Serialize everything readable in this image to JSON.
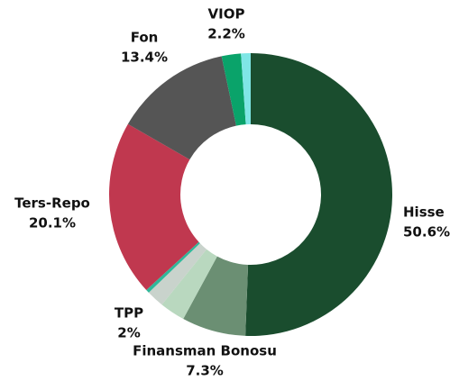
{
  "chart_data": {
    "type": "donut",
    "categories": [
      "Hisse",
      "Finansman Bonosu",
      null,
      "TPP",
      null,
      "Ters-Repo",
      "Fon",
      "VIOP",
      null
    ],
    "values": [
      50.6,
      7.3,
      2.9,
      2,
      0.4,
      20.1,
      13.4,
      2.2,
      1.1
    ],
    "value_labels": [
      "50.6%",
      "7.3%",
      null,
      "2%",
      null,
      "20.1%",
      "13.4%",
      "2.2%",
      null
    ],
    "colors": [
      "#1a4d2e",
      "#6b8f73",
      "#b9d8bf",
      "#c9d3cc",
      "#2fb89a",
      "#c0384f",
      "#555555",
      "#0aa36a",
      "#7fe6e6"
    ]
  }
}
